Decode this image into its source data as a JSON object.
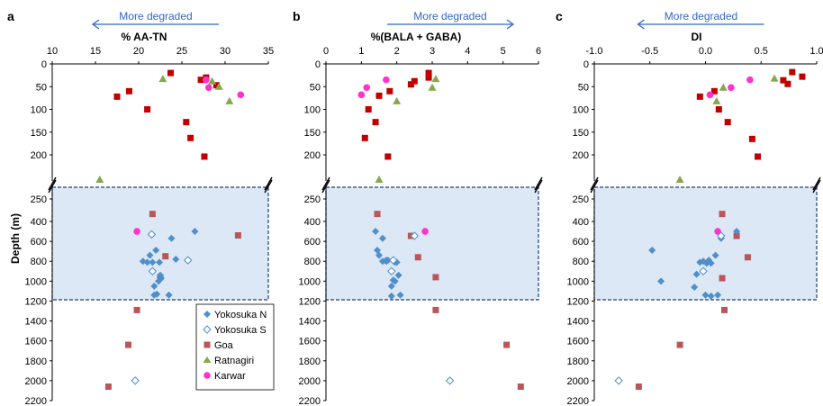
{
  "colors": {
    "Yokosuka N": "#4f8fcb",
    "Yokosuka S": "#4f8fcb",
    "Goa": "#b85757",
    "Goa_recent": "#c00000",
    "Ratnagiri": "#86a84c",
    "Karwar": "#ff33cc",
    "arrow": "#3366cc",
    "box_fill": "#dce8f6",
    "box_border": "#1f3f7a"
  },
  "y_axis": {
    "label": "Depth (m)",
    "ticks_upper": [
      "0",
      "50",
      "100",
      "150",
      "200"
    ],
    "ticks_lower": [
      "250",
      "400",
      "600",
      "800",
      "1000",
      "1200",
      "1400",
      "1600",
      "1800",
      "2000",
      "2200"
    ]
  },
  "legend": [
    "Yokosuka N",
    "Yokosuka S",
    "Goa",
    "Ratnagiri",
    "Karwar"
  ],
  "chart_data": [
    {
      "type": "scatter",
      "panel": "a",
      "title": "% AA-TN",
      "arrow_label": "More degraded",
      "arrow_direction": "left",
      "xlim": [
        10,
        35
      ],
      "xticks": [
        "10",
        "15",
        "20",
        "25",
        "30",
        "35"
      ],
      "ylabel": "Depth (m)",
      "series": [
        {
          "name": "Goa",
          "shape": "square",
          "variant": "recent",
          "x": [
            23.7,
            27.8,
            27.2,
            29.0,
            17.5,
            18.9,
            21.0,
            25.5,
            26.0,
            27.6
          ],
          "y": [
            20,
            30,
            35,
            47,
            72,
            60,
            100,
            128,
            163,
            202
          ]
        },
        {
          "name": "Goa",
          "shape": "square",
          "variant": "deep",
          "x": [
            21.6,
            31.5,
            23.1,
            22.5,
            19.8,
            18.8,
            16.5
          ],
          "y": [
            350,
            540,
            750,
            960,
            1290,
            1640,
            2060
          ]
        },
        {
          "name": "Ratnagiri",
          "shape": "triangle",
          "x": [
            22.8,
            28.5,
            29.3,
            30.5,
            15.5
          ],
          "y": [
            33,
            38,
            50,
            82,
            228
          ]
        },
        {
          "name": "Karwar",
          "shape": "circle",
          "x": [
            27.8,
            28.1,
            31.8,
            19.8
          ],
          "y": [
            35,
            52,
            68,
            500
          ]
        },
        {
          "name": "Yokosuka N",
          "shape": "diamond",
          "filled": true,
          "x": [
            26.5,
            23.8,
            22.0,
            21.3,
            20.5,
            21.0,
            21.6,
            22.4,
            24.3,
            22.5,
            22.6,
            22.3,
            21.8,
            22.1,
            23.5,
            21.8
          ],
          "y": [
            500,
            570,
            690,
            740,
            800,
            810,
            810,
            810,
            780,
            940,
            970,
            1000,
            1050,
            1130,
            1140,
            1140
          ]
        },
        {
          "name": "Yokosuka S",
          "shape": "diamond",
          "filled": false,
          "x": [
            21.5,
            21.6,
            25.7,
            19.6
          ],
          "y": [
            530,
            900,
            790,
            2000
          ]
        }
      ]
    },
    {
      "type": "scatter",
      "panel": "b",
      "title": "%(BALA + GABA)",
      "arrow_label": "More degraded",
      "arrow_direction": "right",
      "xlim": [
        0,
        6
      ],
      "xticks": [
        "0",
        "1",
        "2",
        "3",
        "4",
        "5",
        "6"
      ],
      "series": [
        {
          "name": "Goa",
          "shape": "square",
          "variant": "recent",
          "x": [
            2.9,
            2.9,
            2.5,
            2.4,
            1.8,
            1.5,
            1.2,
            1.4,
            1.1,
            1.75
          ],
          "y": [
            20,
            30,
            38,
            45,
            60,
            70,
            100,
            128,
            163,
            202
          ]
        },
        {
          "name": "Goa",
          "shape": "square",
          "variant": "deep",
          "x": [
            1.45,
            2.4,
            2.6,
            3.1,
            3.1,
            5.1,
            5.5
          ],
          "y": [
            350,
            545,
            760,
            960,
            1290,
            1640,
            2060
          ]
        },
        {
          "name": "Ratnagiri",
          "shape": "triangle",
          "x": [
            3.1,
            3.0,
            2.0,
            1.5
          ],
          "y": [
            33,
            52,
            82,
            228
          ]
        },
        {
          "name": "Karwar",
          "shape": "circle",
          "x": [
            1.15,
            1.7,
            1.0,
            2.8
          ],
          "y": [
            52,
            35,
            68,
            500
          ]
        },
        {
          "name": "Yokosuka N",
          "shape": "diamond",
          "filled": true,
          "x": [
            1.4,
            1.6,
            1.45,
            1.5,
            1.6,
            1.7,
            1.95,
            2.0,
            1.75,
            2.05,
            1.9,
            1.95,
            1.85,
            1.7,
            1.85,
            2.1
          ],
          "y": [
            500,
            570,
            690,
            740,
            800,
            790,
            810,
            810,
            790,
            940,
            990,
            1000,
            1050,
            800,
            1150,
            1140
          ]
        },
        {
          "name": "Yokosuka S",
          "shape": "diamond",
          "filled": false,
          "x": [
            2.5,
            1.85,
            1.9,
            3.5
          ],
          "y": [
            545,
            900,
            790,
            2000
          ]
        }
      ]
    },
    {
      "type": "scatter",
      "panel": "c",
      "title": "DI",
      "arrow_label": "More degraded",
      "arrow_direction": "left",
      "xlim": [
        -1.0,
        1.0
      ],
      "xticks": [
        "-1.0",
        "-0.5",
        "0.0",
        "0.5",
        "1.0"
      ],
      "series": [
        {
          "name": "Goa",
          "shape": "square",
          "variant": "recent",
          "x": [
            0.78,
            0.87,
            0.7,
            0.74,
            0.08,
            -0.05,
            0.12,
            0.2,
            0.42,
            0.47
          ],
          "y": [
            18,
            28,
            36,
            44,
            60,
            72,
            100,
            128,
            165,
            202
          ]
        },
        {
          "name": "Goa",
          "shape": "square",
          "variant": "deep",
          "x": [
            0.15,
            0.28,
            0.38,
            0.15,
            0.17,
            -0.23,
            -0.6
          ],
          "y": [
            350,
            545,
            760,
            970,
            1290,
            1640,
            2060
          ]
        },
        {
          "name": "Ratnagiri",
          "shape": "triangle",
          "x": [
            0.62,
            0.16,
            0.1,
            -0.23
          ],
          "y": [
            32,
            52,
            82,
            228
          ]
        },
        {
          "name": "Karwar",
          "shape": "circle",
          "x": [
            0.4,
            0.23,
            0.04,
            0.11
          ],
          "y": [
            35,
            52,
            68,
            500
          ]
        },
        {
          "name": "Yokosuka N",
          "shape": "diamond",
          "filled": true,
          "x": [
            -0.48,
            0.28,
            0.14,
            0.09,
            -0.05,
            0.03,
            -0.02,
            0.02,
            0.01,
            0.05,
            -0.08,
            -0.4,
            -0.1,
            0.0,
            0.11,
            0.05
          ],
          "y": [
            690,
            500,
            570,
            740,
            810,
            790,
            800,
            810,
            820,
            820,
            930,
            1000,
            1060,
            1140,
            1140,
            1150
          ]
        },
        {
          "name": "Yokosuka S",
          "shape": "diamond",
          "filled": false,
          "x": [
            0.14,
            -0.02,
            -0.78
          ],
          "y": [
            545,
            900,
            2000
          ]
        }
      ]
    }
  ]
}
